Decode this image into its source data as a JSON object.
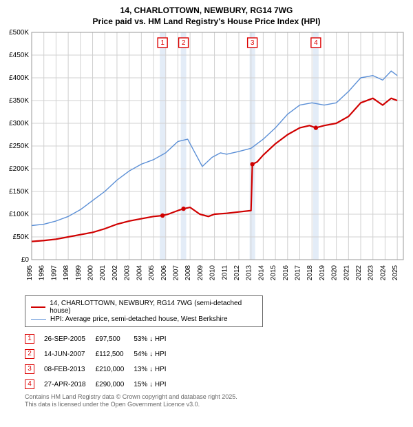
{
  "title": {
    "line1": "14, CHARLOTTOWN, NEWBURY, RG14 7WG",
    "line2": "Price paid vs. HM Land Registry's House Price Index (HPI)"
  },
  "chart": {
    "type": "line",
    "background_color": "#ffffff",
    "grid_color": "#d0d0d0",
    "border_color": "#999999",
    "xlim": [
      1995,
      2025.5
    ],
    "ylim": [
      0,
      500
    ],
    "yticks": [
      0,
      50,
      100,
      150,
      200,
      250,
      300,
      350,
      400,
      450,
      500
    ],
    "ytick_labels": [
      "£0",
      "£50K",
      "£100K",
      "£150K",
      "£200K",
      "£250K",
      "£300K",
      "£350K",
      "£400K",
      "£450K",
      "£500K"
    ],
    "xticks": [
      1995,
      1996,
      1997,
      1998,
      1999,
      2000,
      2001,
      2002,
      2003,
      2004,
      2005,
      2006,
      2007,
      2008,
      2009,
      2010,
      2011,
      2012,
      2013,
      2014,
      2015,
      2016,
      2017,
      2018,
      2019,
      2020,
      2021,
      2022,
      2023,
      2024,
      2025
    ],
    "series": [
      {
        "name": "red",
        "label": "14, CHARLOTTOWN, NEWBURY, RG14 7WG (semi-detached house)",
        "color": "#d00000",
        "width": 2.2,
        "points": [
          [
            1995,
            40
          ],
          [
            1996,
            42
          ],
          [
            1997,
            45
          ],
          [
            1998,
            50
          ],
          [
            1999,
            55
          ],
          [
            2000,
            60
          ],
          [
            2001,
            68
          ],
          [
            2002,
            78
          ],
          [
            2003,
            85
          ],
          [
            2004,
            90
          ],
          [
            2005,
            95
          ],
          [
            2005.74,
            97
          ],
          [
            2006.2,
            100
          ],
          [
            2007,
            108
          ],
          [
            2007.46,
            112
          ],
          [
            2008,
            115
          ],
          [
            2008.8,
            100
          ],
          [
            2009.5,
            95
          ],
          [
            2010,
            100
          ],
          [
            2011,
            102
          ],
          [
            2012,
            105
          ],
          [
            2013,
            108
          ],
          [
            2013.11,
            210
          ],
          [
            2013.5,
            215
          ],
          [
            2014,
            230
          ],
          [
            2015,
            255
          ],
          [
            2016,
            275
          ],
          [
            2017,
            290
          ],
          [
            2017.8,
            295
          ],
          [
            2018.32,
            290
          ],
          [
            2019,
            295
          ],
          [
            2020,
            300
          ],
          [
            2021,
            315
          ],
          [
            2022,
            345
          ],
          [
            2023,
            355
          ],
          [
            2023.8,
            340
          ],
          [
            2024.5,
            355
          ],
          [
            2025,
            350
          ]
        ]
      },
      {
        "name": "blue",
        "label": "HPI: Average price, semi-detached house, West Berkshire",
        "color": "#5b8fd6",
        "width": 1.4,
        "points": [
          [
            1995,
            75
          ],
          [
            1996,
            78
          ],
          [
            1997,
            85
          ],
          [
            1998,
            95
          ],
          [
            1999,
            110
          ],
          [
            2000,
            130
          ],
          [
            2001,
            150
          ],
          [
            2002,
            175
          ],
          [
            2003,
            195
          ],
          [
            2004,
            210
          ],
          [
            2005,
            220
          ],
          [
            2006,
            235
          ],
          [
            2007,
            260
          ],
          [
            2007.8,
            265
          ],
          [
            2008.5,
            230
          ],
          [
            2009,
            205
          ],
          [
            2009.8,
            225
          ],
          [
            2010.5,
            235
          ],
          [
            2011,
            232
          ],
          [
            2012,
            238
          ],
          [
            2013,
            245
          ],
          [
            2014,
            265
          ],
          [
            2015,
            290
          ],
          [
            2016,
            320
          ],
          [
            2017,
            340
          ],
          [
            2018,
            345
          ],
          [
            2019,
            340
          ],
          [
            2020,
            345
          ],
          [
            2021,
            370
          ],
          [
            2022,
            400
          ],
          [
            2023,
            405
          ],
          [
            2023.8,
            395
          ],
          [
            2024.5,
            415
          ],
          [
            2025,
            405
          ]
        ]
      }
    ],
    "sale_markers": [
      {
        "n": "1",
        "x": 2005.74,
        "y": 97
      },
      {
        "n": "2",
        "x": 2007.46,
        "y": 112
      },
      {
        "n": "3",
        "x": 2013.11,
        "y": 210
      },
      {
        "n": "4",
        "x": 2018.32,
        "y": 290
      }
    ],
    "marker_box_color": "#d00000",
    "highlight_band_color": "#e3ecf7",
    "sale_dot_color": "#d00000"
  },
  "legend": {
    "items": [
      {
        "color": "#d00000",
        "width": 2.5,
        "label": "14, CHARLOTTOWN, NEWBURY, RG14 7WG (semi-detached house)"
      },
      {
        "color": "#5b8fd6",
        "width": 1.5,
        "label": "HPI: Average price, semi-detached house, West Berkshire"
      }
    ]
  },
  "sales_table": {
    "rows": [
      {
        "n": "1",
        "date": "26-SEP-2005",
        "price": "£97,500",
        "diff": "53% ↓ HPI"
      },
      {
        "n": "2",
        "date": "14-JUN-2007",
        "price": "£112,500",
        "diff": "54% ↓ HPI"
      },
      {
        "n": "3",
        "date": "08-FEB-2013",
        "price": "£210,000",
        "diff": "13% ↓ HPI"
      },
      {
        "n": "4",
        "date": "27-APR-2018",
        "price": "£290,000",
        "diff": "15% ↓ HPI"
      }
    ]
  },
  "footer": {
    "line1": "Contains HM Land Registry data © Crown copyright and database right 2025.",
    "line2": "This data is licensed under the Open Government Licence v3.0."
  }
}
